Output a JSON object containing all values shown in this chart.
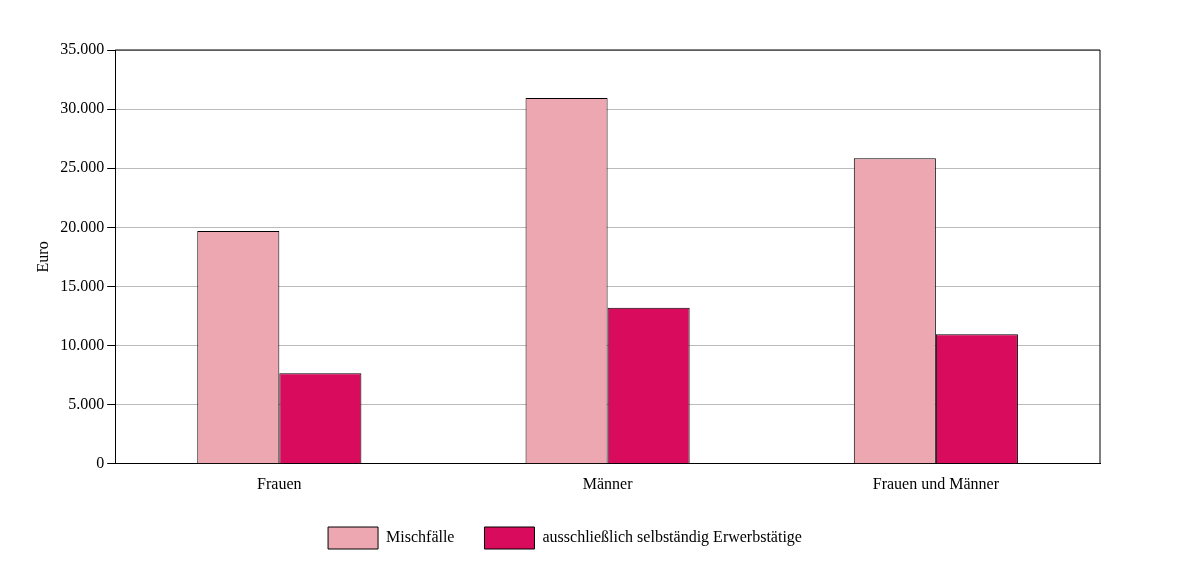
{
  "chart_data": {
    "type": "bar",
    "ylabel": "Euro",
    "categories": [
      "Frauen",
      "Männer",
      "Frauen und Männer"
    ],
    "series": [
      {
        "name": "Mischfälle",
        "color": "#eda7b0",
        "values": [
          19700,
          30950,
          25850
        ]
      },
      {
        "name": "ausschließlich selbständig Erwerbstätige",
        "color": "#d90b5c",
        "values": [
          7650,
          13200,
          10950
        ]
      }
    ],
    "ylim": [
      0,
      35000
    ],
    "yticks": [
      0,
      {
        "value": 5000,
        "label": "5.000"
      },
      {
        "value": 10000,
        "label": "10.000"
      },
      {
        "value": 15000,
        "label": "15.000"
      },
      {
        "value": 20000,
        "label": "20.000"
      },
      {
        "value": 25000,
        "label": "25.000"
      },
      {
        "value": 30000,
        "label": "30.000"
      },
      {
        "value": 35000,
        "label": "35.000"
      }
    ],
    "grid": "y",
    "legend": "bottom"
  }
}
